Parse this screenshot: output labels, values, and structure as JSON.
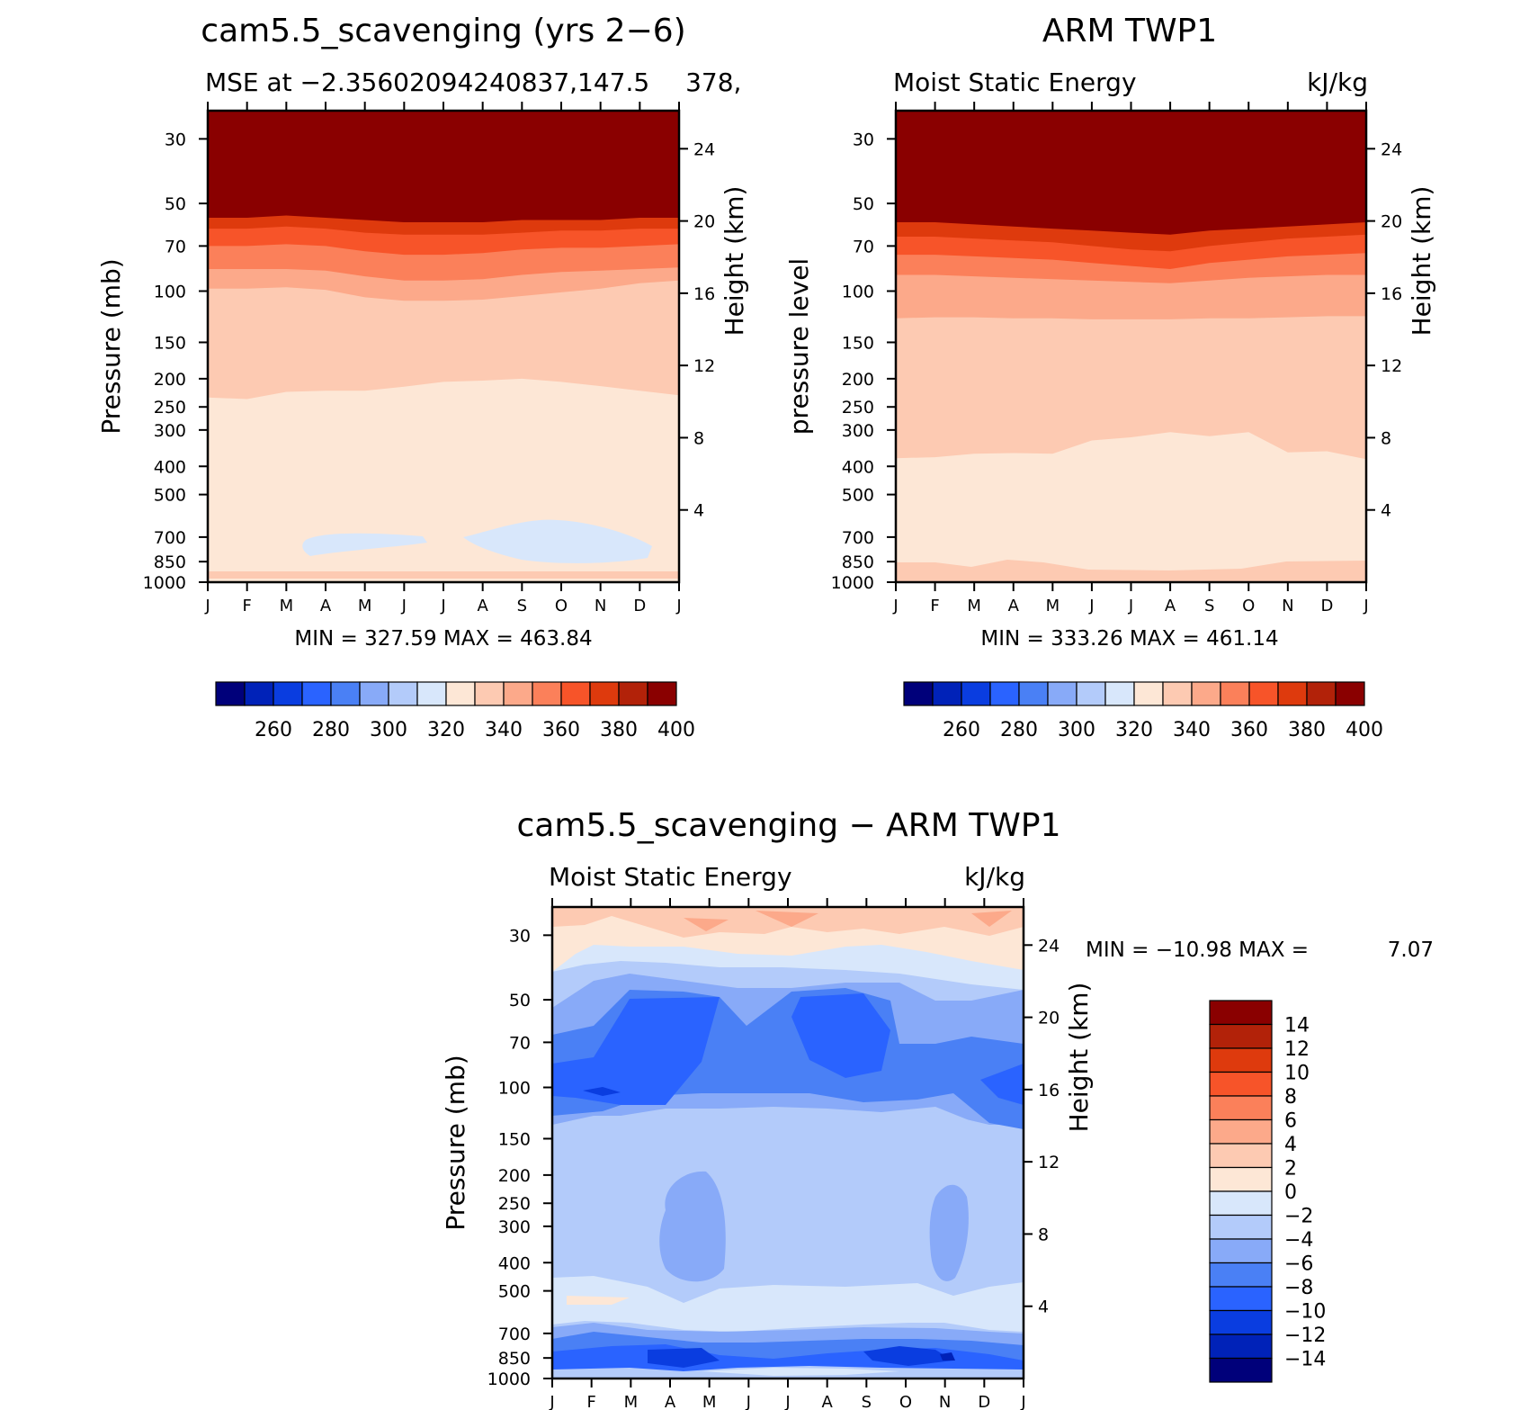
{
  "chart_data": [
    {
      "type": "heatmap",
      "title": "cam5.5_scavenging (yrs 2−6)",
      "left_label": "MSE at −2.35602094240837,147.5",
      "right_label": "378, ",
      "ylabel": "Pressure (mb)",
      "y2label": "Height (km)",
      "x_ticks": [
        "J",
        "F",
        "M",
        "A",
        "M",
        "J",
        "J",
        "A",
        "S",
        "O",
        "N",
        "D",
        "J"
      ],
      "pressure_ticks": [
        30,
        50,
        70,
        100,
        150,
        200,
        250,
        300,
        400,
        500,
        700,
        850,
        1000
      ],
      "height_ticks": [
        24,
        20,
        16,
        12,
        8,
        4
      ],
      "y_scale": "log",
      "minmax": "MIN = 327.59 MAX = 463.84",
      "colorbar_labels": [
        "260",
        "280",
        "300",
        "320",
        "340",
        "360",
        "380",
        "400"
      ],
      "colorbar_colors": [
        "#00007a",
        "#0022b8",
        "#0a3de0",
        "#2a63ff",
        "#4a80f5",
        "#88aaf8",
        "#b3cbfa",
        "#d8e7fb",
        "#fde7d6",
        "#fdcab2",
        "#fca98a",
        "#fb805a",
        "#f75429",
        "#de3a0d",
        "#b22209",
        "#8a0000"
      ],
      "contour_pressure_bounds": {
        "above_400": [
          56,
          56,
          55,
          56,
          57,
          58,
          58,
          58,
          57,
          57,
          57,
          56,
          56
        ],
        "above_380": [
          61,
          61,
          60,
          61,
          63,
          64,
          64,
          64,
          63,
          62,
          62,
          61,
          61
        ],
        "above_360": [
          70,
          70,
          69,
          70,
          73,
          75,
          75,
          74,
          72,
          71,
          71,
          70,
          69
        ],
        "above_340": [
          84,
          84,
          84,
          85,
          89,
          92,
          92,
          91,
          88,
          86,
          85,
          84,
          83
        ],
        "above_330": [
          98,
          98,
          97,
          99,
          105,
          108,
          108,
          107,
          104,
          101,
          98,
          94,
          92
        ],
        "above_320": [
          232,
          235,
          222,
          220,
          220,
          213,
          205,
          203,
          200,
          205,
          212,
          220,
          228
        ]
      },
      "colorbar_levels_key": "higher values shaded darker red"
    },
    {
      "type": "heatmap",
      "title": "ARM TWP1",
      "left_label": "Moist Static Energy",
      "right_label": "kJ/kg",
      "ylabel": "pressure level",
      "y2label": "Height (km)",
      "x_ticks": [
        "J",
        "F",
        "M",
        "A",
        "M",
        "J",
        "J",
        "A",
        "S",
        "O",
        "N",
        "D",
        "J"
      ],
      "pressure_ticks": [
        30,
        50,
        70,
        100,
        150,
        200,
        250,
        300,
        400,
        500,
        700,
        850,
        1000
      ],
      "height_ticks": [
        24,
        20,
        16,
        12,
        8,
        4
      ],
      "y_scale": "log",
      "minmax": "MIN = 333.26 MAX = 461.14",
      "colorbar_labels": [
        "260",
        "280",
        "300",
        "320",
        "340",
        "360",
        "380",
        "400"
      ],
      "colorbar_colors": [
        "#00007a",
        "#0022b8",
        "#0a3de0",
        "#2a63ff",
        "#4a80f5",
        "#88aaf8",
        "#b3cbfa",
        "#d8e7fb",
        "#fde7d6",
        "#fdcab2",
        "#fca98a",
        "#fb805a",
        "#f75429",
        "#de3a0d",
        "#b22209",
        "#8a0000"
      ],
      "contour_pressure_bounds": {
        "above_400": [
          58,
          58,
          59,
          60,
          61,
          62,
          63,
          64,
          62,
          61,
          60,
          59,
          58
        ],
        "above_380": [
          65,
          65,
          66,
          67,
          68,
          70,
          72,
          73,
          70,
          68,
          66,
          65,
          64
        ],
        "above_360": [
          75,
          75,
          76,
          77,
          78,
          80,
          82,
          84,
          80,
          78,
          76,
          75,
          74
        ],
        "above_340": [
          88,
          88,
          89,
          90,
          91,
          92,
          93,
          94,
          92,
          90,
          89,
          88,
          88
        ],
        "above_330": [
          124,
          123,
          123,
          124,
          124,
          125,
          125,
          125,
          124,
          124,
          123,
          122,
          122
        ],
        "above_320": [
          375,
          372,
          362,
          360,
          362,
          326,
          318,
          305,
          315,
          305,
          358,
          355,
          378
        ]
      }
    },
    {
      "type": "heatmap",
      "title": "cam5.5_scavenging − ARM TWP1",
      "left_label": "Moist Static Energy",
      "right_label": "kJ/kg",
      "ylabel": "Pressure (mb)",
      "y2label": "Height (km)",
      "x_ticks": [
        "J",
        "F",
        "M",
        "A",
        "M",
        "J",
        "J",
        "A",
        "S",
        "O",
        "N",
        "D",
        "J"
      ],
      "pressure_ticks": [
        30,
        50,
        70,
        100,
        150,
        200,
        250,
        300,
        400,
        500,
        700,
        850,
        1000
      ],
      "height_ticks": [
        24,
        20,
        16,
        12,
        8,
        4
      ],
      "y_scale": "log",
      "minmax_label": "MIN = −10.98 MAX =",
      "minmax_value": "7.07",
      "colorbar_labels": [
        "14",
        "12",
        "10",
        "8",
        "6",
        "4",
        "2",
        "0",
        "−2",
        "−4",
        "−6",
        "−8",
        "−10",
        "−12",
        "−14"
      ],
      "colorbar_colors": [
        "#8a0000",
        "#b22209",
        "#de3a0d",
        "#f75429",
        "#fb805a",
        "#fca98a",
        "#fdcab2",
        "#fde7d6",
        "#d8e7fb",
        "#b3cbfa",
        "#88aaf8",
        "#4a80f5",
        "#2a63ff",
        "#0a3de0",
        "#0022b8",
        "#00007a"
      ]
    }
  ]
}
